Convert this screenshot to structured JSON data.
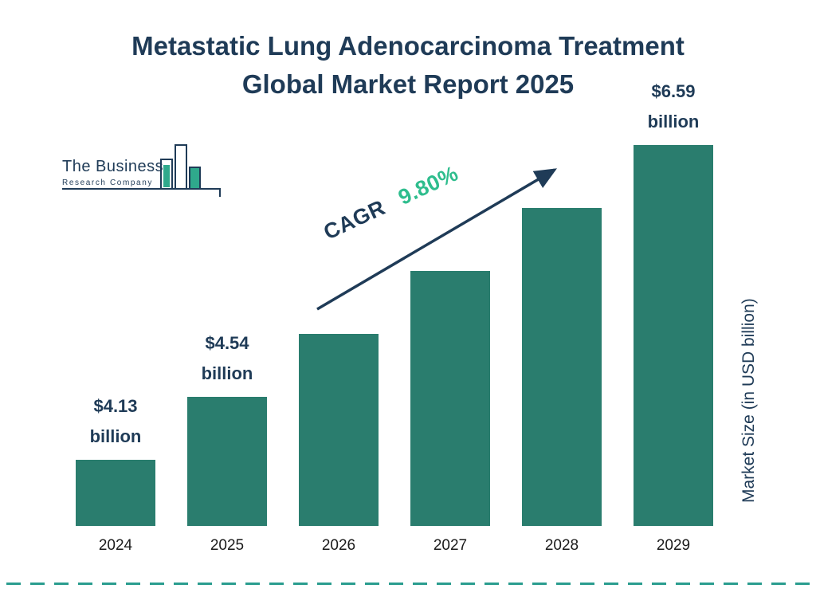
{
  "title": {
    "line1": "Metastatic Lung Adenocarcinoma Treatment",
    "line2": "Global Market Report 2025"
  },
  "logo": {
    "line1": "The Business",
    "line2": "Research Company"
  },
  "cagr": {
    "label": "CAGR",
    "value": "9.80%"
  },
  "y_axis_label": "Market Size (in USD billion)",
  "colors": {
    "bar": "#2a7d6e",
    "navy": "#1f3b57",
    "green": "#2ebd8d",
    "dash_line": "#2a9d8f"
  },
  "chart_data": {
    "type": "bar",
    "title": "Metastatic Lung Adenocarcinoma Treatment Global Market Report 2025",
    "categories": [
      "2024",
      "2025",
      "2026",
      "2027",
      "2028",
      "2029"
    ],
    "values": [
      4.13,
      4.54,
      4.99,
      5.48,
      6.02,
      6.59
    ],
    "unit": "USD billion",
    "ylabel": "Market Size (in USD billion)",
    "data_labels": [
      {
        "amount": "$4.13",
        "unit": "billion"
      },
      {
        "amount": "$4.54",
        "unit": "billion"
      },
      null,
      null,
      null,
      {
        "amount": "$6.59",
        "unit": "billion"
      }
    ],
    "cagr": "9.80%",
    "grid": false,
    "legend": false
  }
}
